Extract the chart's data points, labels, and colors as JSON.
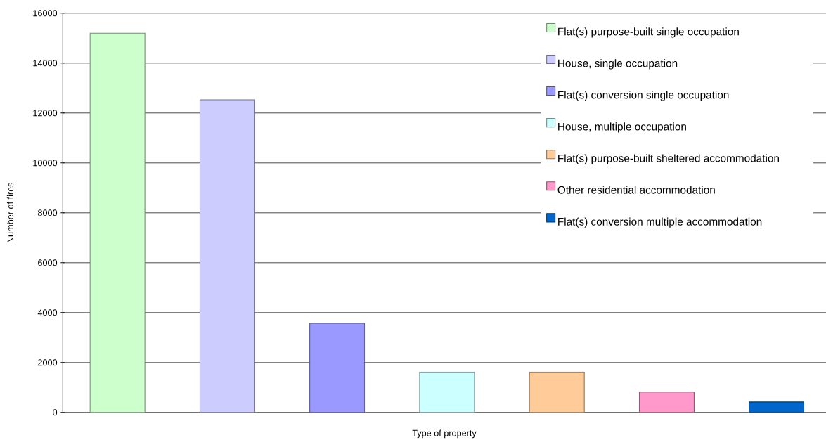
{
  "chart_data": {
    "type": "bar",
    "xlabel": "Type of property",
    "ylabel": "Number of fires",
    "categories": [
      null,
      null,
      null,
      null,
      null,
      null,
      null
    ],
    "series": [
      {
        "name": "Flat(s) purpose-built single occupation",
        "color": "#ccffcc",
        "values": [
          15200,
          null,
          null,
          null,
          null,
          null,
          null
        ]
      },
      {
        "name": "House, single occupation",
        "color": "#ccccff",
        "values": [
          null,
          12530,
          null,
          null,
          null,
          null,
          null
        ]
      },
      {
        "name": "Flat(s) conversion single occupation",
        "color": "#9999ff",
        "values": [
          null,
          null,
          3570,
          null,
          null,
          null,
          null
        ]
      },
      {
        "name": "House, multiple occupation",
        "color": "#ccffff",
        "values": [
          null,
          null,
          null,
          1620,
          null,
          null,
          null
        ]
      },
      {
        "name": "Flat(s) purpose-built sheltered accommodation",
        "color": "#ffcc99",
        "values": [
          null,
          null,
          null,
          null,
          1620,
          null,
          null
        ]
      },
      {
        "name": "Other residential accommodation",
        "color": "#ff99cc",
        "values": [
          null,
          null,
          null,
          null,
          null,
          820,
          null
        ]
      },
      {
        "name": "Flat(s) conversion multiple accommodation",
        "color": "#0066cc",
        "values": [
          null,
          null,
          null,
          null,
          null,
          null,
          420
        ]
      }
    ],
    "ylim": [
      0,
      16000
    ],
    "yticks": [
      0,
      2000,
      4000,
      6000,
      8000,
      10000,
      12000,
      14000,
      16000
    ],
    "grid": "y",
    "legend": "top right"
  }
}
